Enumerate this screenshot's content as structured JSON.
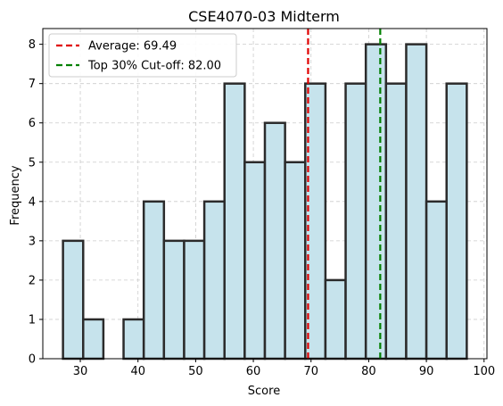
{
  "chart_data": {
    "type": "bar",
    "title": "CSE4070-03 Midterm",
    "xlabel": "Score",
    "ylabel": "Frequency",
    "xlim": [
      23.5,
      100.5
    ],
    "ylim": [
      0,
      8.4
    ],
    "xticks": [
      30,
      40,
      50,
      60,
      70,
      80,
      90,
      100
    ],
    "yticks": [
      0,
      1,
      2,
      3,
      4,
      5,
      6,
      7,
      8
    ],
    "grid": true,
    "bins": [
      {
        "start": 27.0,
        "end": 30.5,
        "count": 3
      },
      {
        "start": 30.5,
        "end": 34.0,
        "count": 1
      },
      {
        "start": 34.0,
        "end": 37.5,
        "count": 0
      },
      {
        "start": 37.5,
        "end": 41.0,
        "count": 1
      },
      {
        "start": 41.0,
        "end": 44.5,
        "count": 4
      },
      {
        "start": 44.5,
        "end": 48.0,
        "count": 3
      },
      {
        "start": 48.0,
        "end": 51.5,
        "count": 3
      },
      {
        "start": 51.5,
        "end": 55.0,
        "count": 4
      },
      {
        "start": 55.0,
        "end": 58.5,
        "count": 7
      },
      {
        "start": 58.5,
        "end": 62.0,
        "count": 5
      },
      {
        "start": 62.0,
        "end": 65.5,
        "count": 6
      },
      {
        "start": 65.5,
        "end": 69.0,
        "count": 5
      },
      {
        "start": 69.0,
        "end": 72.5,
        "count": 7
      },
      {
        "start": 72.5,
        "end": 76.0,
        "count": 2
      },
      {
        "start": 76.0,
        "end": 79.5,
        "count": 7
      },
      {
        "start": 79.5,
        "end": 83.0,
        "count": 8
      },
      {
        "start": 83.0,
        "end": 86.5,
        "count": 7
      },
      {
        "start": 86.5,
        "end": 90.0,
        "count": 8
      },
      {
        "start": 90.0,
        "end": 93.5,
        "count": 4
      },
      {
        "start": 93.5,
        "end": 97.0,
        "count": 7
      }
    ],
    "bar_fill": "#c6e3ec",
    "bar_edge": "#2b2b2b",
    "reference_lines": [
      {
        "label": "Average: 69.49",
        "x": 69.49,
        "color": "#e00000",
        "style": "dashed"
      },
      {
        "label": "Top 30% Cut-off: 82.00",
        "x": 82.0,
        "color": "#008000",
        "style": "dashed"
      }
    ],
    "legend_position": "top-left"
  }
}
